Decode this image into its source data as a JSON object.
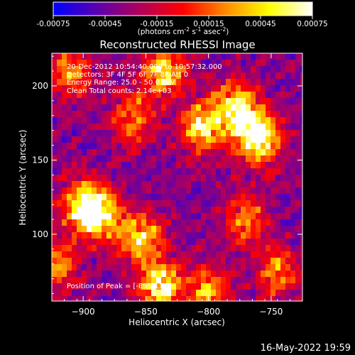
{
  "chart_data": {
    "type": "heatmap",
    "title": "Reconstructed RHESSI Image",
    "xlabel": "Heliocentric X (arcsec)",
    "ylabel": "Heliocentric Y (arcsec)",
    "xlim": [
      -925,
      -725
    ],
    "ylim": [
      55,
      222
    ],
    "xticks": [
      -900,
      -850,
      -800,
      -750
    ],
    "yticks": [
      100,
      150,
      200
    ],
    "colorbar": {
      "range": [
        -0.00075,
        0.00075
      ],
      "ticks": [
        "-0.00075",
        "-0.00045",
        "-0.00015",
        "0.00015",
        "0.00045",
        "0.00075"
      ],
      "unit_label": "(photons cm",
      "unit_sup1": "-2",
      "unit_mid1": " s",
      "unit_sup2": "-1",
      "unit_mid2": " asec",
      "unit_sup3": "-2",
      "unit_end": ")",
      "colors": [
        "#0000ff",
        "#5a00b0",
        "#b0005a",
        "#ff0000",
        "#ff8c00",
        "#ffff00",
        "#ffffff"
      ]
    },
    "bright_sources": [
      {
        "x": -760,
        "y": 165,
        "intensity": 1.0
      },
      {
        "x": -778,
        "y": 185,
        "intensity": 0.85
      },
      {
        "x": -805,
        "y": 172,
        "intensity": 0.75
      },
      {
        "x": -900,
        "y": 120,
        "intensity": 0.85
      },
      {
        "x": -885,
        "y": 112,
        "intensity": 0.7
      },
      {
        "x": -855,
        "y": 98,
        "intensity": 0.75
      },
      {
        "x": -835,
        "y": 210,
        "intensity": 0.75
      },
      {
        "x": -838,
        "y": 65,
        "intensity": 0.9
      },
      {
        "x": -800,
        "y": 62,
        "intensity": 0.65
      },
      {
        "x": -910,
        "y": 210,
        "intensity": 0.6
      },
      {
        "x": -860,
        "y": 178,
        "intensity": 0.6
      },
      {
        "x": -770,
        "y": 110,
        "intensity": 0.55
      },
      {
        "x": -745,
        "y": 75,
        "intensity": 0.55
      },
      {
        "x": -920,
        "y": 80,
        "intensity": 0.55
      }
    ],
    "annotations": [
      "20-Dec-2012 10:54:40.000 to 10:57:32.000",
      "Detectors: 3F 4F 5F 6F 7F 8F Att 0",
      "Energy Range: 25.0 - 50.0 keV",
      "Clean     Total counts: 2.14e+03"
    ],
    "peak_label": "Position of Peak = [-895,116]"
  },
  "footer": {
    "timestamp": "16-May-2022 19:59"
  }
}
